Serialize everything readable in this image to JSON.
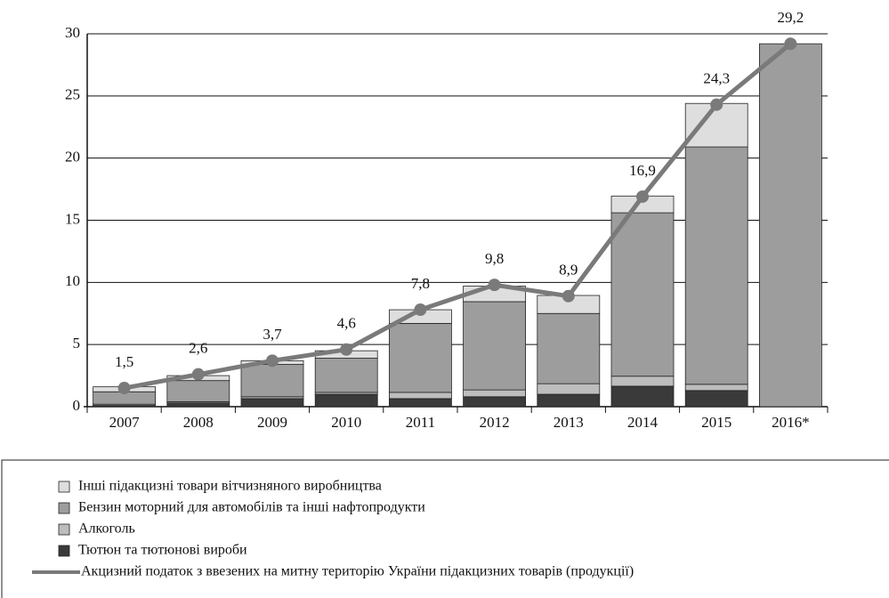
{
  "chart_data": {
    "type": "bar",
    "stacked": true,
    "categories": [
      "2007",
      "2008",
      "2009",
      "2010",
      "2011",
      "2012",
      "2013",
      "2014",
      "2015",
      "2016*"
    ],
    "ylim": [
      0,
      30
    ],
    "yticks": [
      0,
      5,
      10,
      15,
      20,
      25,
      30
    ],
    "grid": true,
    "series": [
      {
        "name": "Інші підакцизні товари вітчизняного виробництва",
        "color": "#dedede",
        "values": [
          0.4,
          0.4,
          0.3,
          0.6,
          1.1,
          1.25,
          1.45,
          1.35,
          3.5,
          null
        ]
      },
      {
        "name": "Бензин моторний для автомобілів та інші нафтопродукти",
        "color": "#9d9d9d",
        "values": [
          1.0,
          1.7,
          2.6,
          2.75,
          5.55,
          7.1,
          5.65,
          13.15,
          19.1,
          29.2
        ]
      },
      {
        "name": "Алкоголь",
        "color": "#bdbdbd",
        "values": [
          0.1,
          0.1,
          0.15,
          0.15,
          0.5,
          0.55,
          0.85,
          0.8,
          0.5,
          null
        ]
      },
      {
        "name": "Тютюн та тютюнові вироби",
        "color": "#3a3a3a",
        "values": [
          0.1,
          0.3,
          0.65,
          1.0,
          0.65,
          0.8,
          1.0,
          1.65,
          1.3,
          null
        ]
      },
      {
        "name": "Акцизний податок з ввезених на митну територію України підакцизних товарів (продукції)",
        "color": "#7a7a7a",
        "type": "line",
        "values": [
          1.5,
          2.6,
          3.7,
          4.6,
          7.8,
          9.8,
          8.9,
          16.9,
          24.3,
          29.2
        ],
        "value_labels": [
          "1,5",
          "2,6",
          "3,7",
          "4,6",
          "7,8",
          "9,8",
          "8,9",
          "16,9",
          "24,3",
          "29,2"
        ]
      }
    ]
  }
}
